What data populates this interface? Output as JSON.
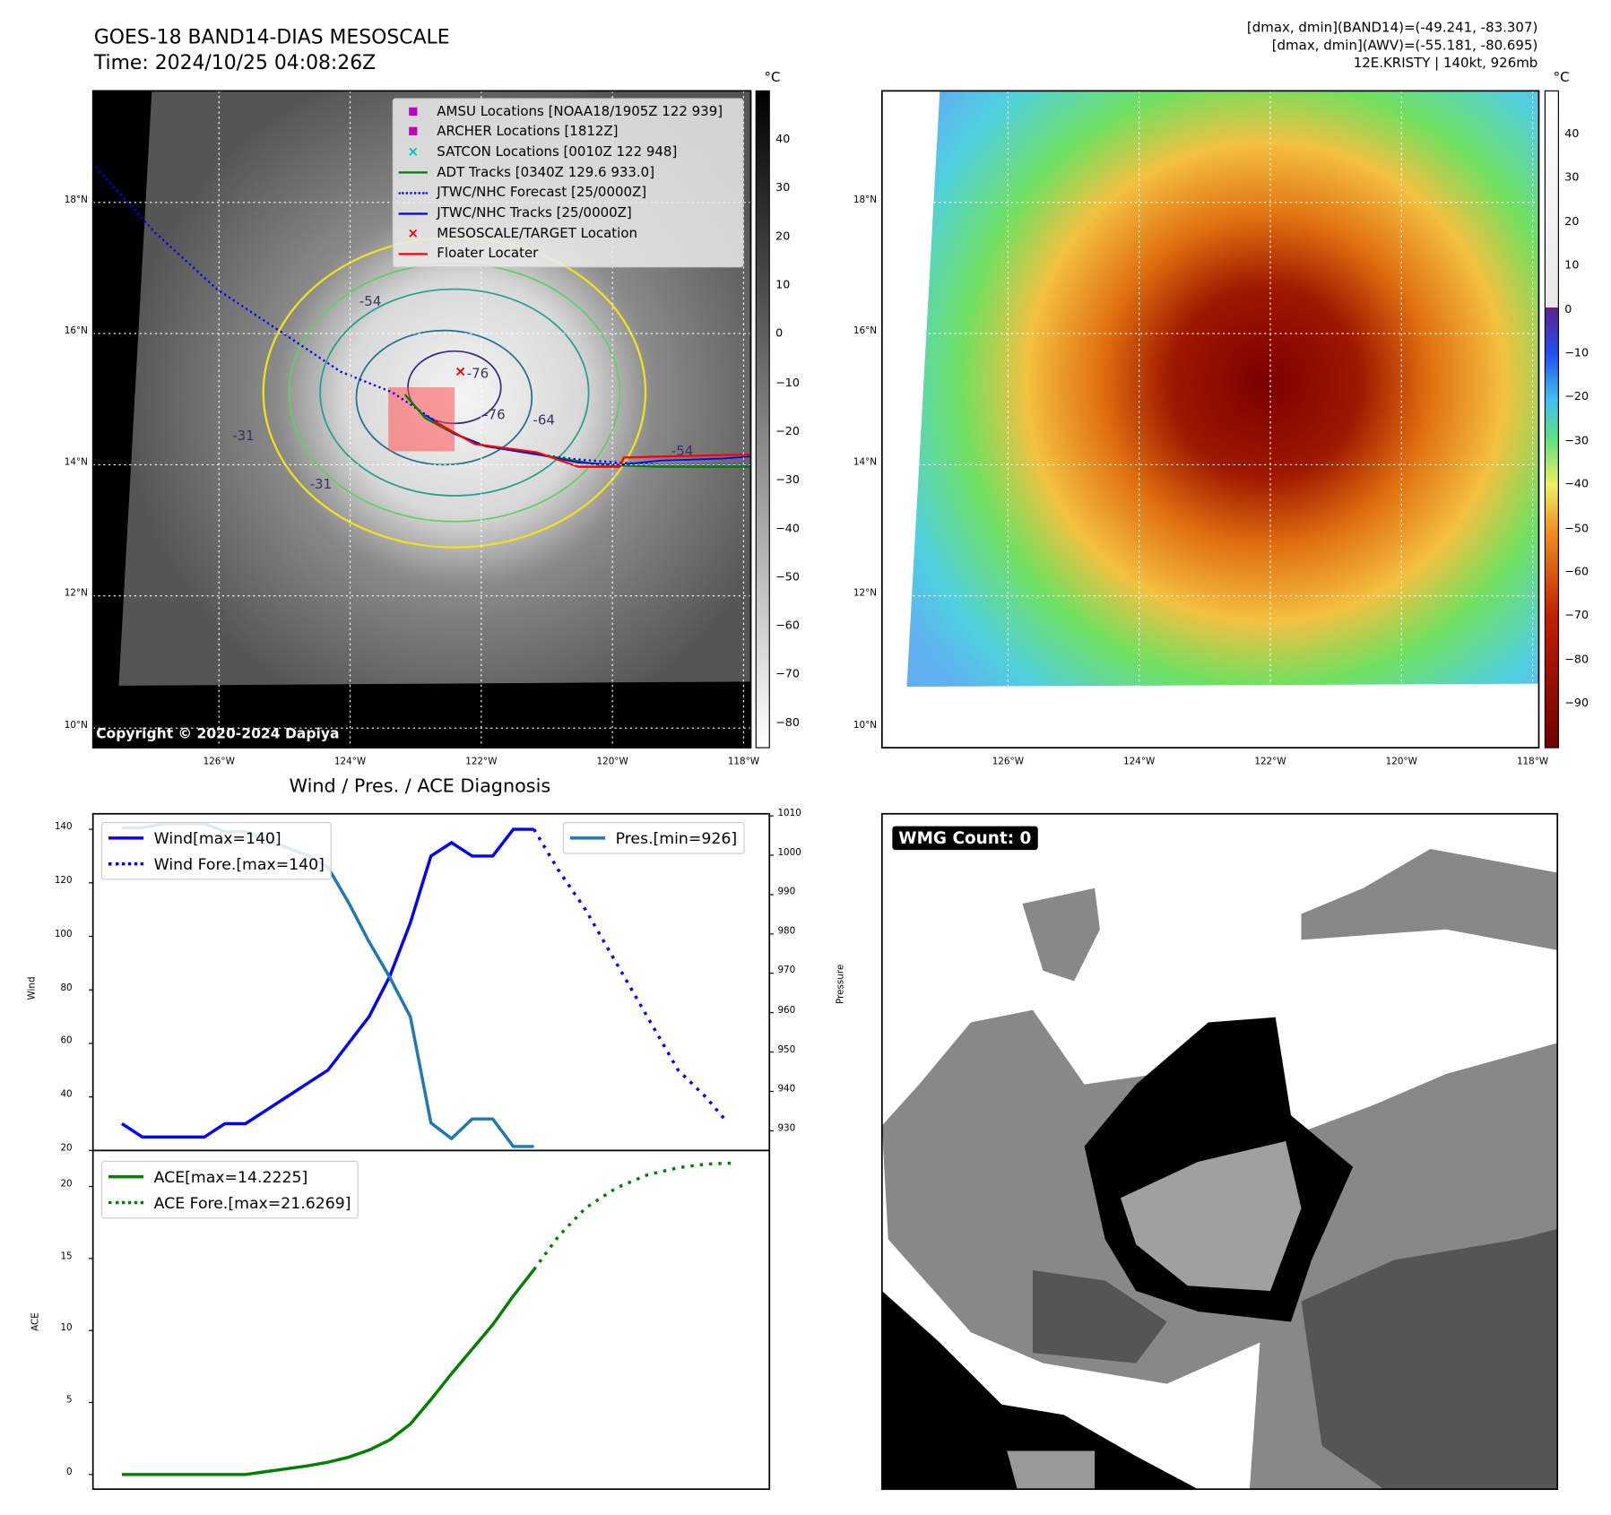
{
  "header": {
    "title": "GOES-18 BAND14-DIAS MESOSCALE",
    "time": "Time: 2024/10/25 04:08:26Z",
    "info": [
      "[dmax, dmin](BAND14)=(-49.241, -83.307)",
      "[dmax, dmin](AWV)=(-55.181, -80.695)",
      "12E.KRISTY | 140kt, 926mb"
    ]
  },
  "maps": {
    "unit": "°C",
    "lat_labels": [
      "18°N",
      "16°N",
      "14°N",
      "12°N",
      "10°N"
    ],
    "lon_labels": [
      "126°W",
      "124°W",
      "122°W",
      "120°W",
      "118°W"
    ],
    "copyright": "Copyright © 2020-2024 Dapiya",
    "gray_colorbar_ticks": [
      "40",
      "30",
      "20",
      "10",
      "0",
      "−10",
      "−20",
      "−30",
      "−40",
      "−50",
      "−60",
      "−70",
      "−80"
    ],
    "color_colorbar_ticks": [
      "40",
      "30",
      "20",
      "10",
      "0",
      "−10",
      "−20",
      "−30",
      "−40",
      "−50",
      "−60",
      "−70",
      "−80",
      "−90"
    ],
    "contour_labels": [
      "-54",
      "-76",
      "-76",
      "-64",
      "-31",
      "-31",
      "-54"
    ],
    "legend": [
      {
        "label": "AMSU Locations [NOAA18/1905Z 122 939]",
        "color": "#c000c0",
        "kind": "square"
      },
      {
        "label": "ARCHER Locations [1812Z]",
        "color": "#c000c0",
        "kind": "square"
      },
      {
        "label": "SATCON Locations [0010Z 122 948]",
        "color": "#00c0c0",
        "kind": "x"
      },
      {
        "label": "ADT Tracks [0340Z 129.6 933.0]",
        "color": "#008000",
        "kind": "line"
      },
      {
        "label": "JTWC/NHC Forecast [25/0000Z]",
        "color": "#0000ff",
        "kind": "dotted"
      },
      {
        "label": "JTWC/NHC Tracks [25/0000Z]",
        "color": "#0000ff",
        "kind": "linedot"
      },
      {
        "label": "MESOSCALE/TARGET Location",
        "color": "#ff0000",
        "kind": "x"
      },
      {
        "label": "Floater Locater",
        "color": "#ff0000",
        "kind": "line"
      }
    ]
  },
  "wmg": {
    "label": "WMG Count: 0"
  },
  "chart_data": [
    {
      "type": "line",
      "title": "Wind / Pres. / ACE Diagnosis",
      "ylabel": "Wind",
      "y2label": "Pressure",
      "ylim": [
        20,
        145
      ],
      "y2lim": [
        925,
        1010
      ],
      "yticks": [
        20,
        40,
        60,
        80,
        100,
        120,
        140
      ],
      "y2ticks": [
        930,
        940,
        950,
        960,
        970,
        980,
        990,
        1000,
        1010
      ],
      "x_hours": [
        0,
        6,
        12,
        18,
        24,
        30,
        36,
        42,
        48,
        54,
        60,
        66,
        72,
        78,
        84,
        90,
        96,
        102,
        108,
        114,
        120
      ],
      "series": [
        {
          "name": "Wind[max=140]",
          "color": "#0000ff",
          "style": "solid",
          "axis": "left",
          "x": [
            0,
            6,
            12,
            18,
            24,
            30,
            36,
            42,
            48,
            54,
            60,
            66,
            72,
            78,
            84,
            90,
            96,
            102,
            108,
            114,
            120
          ],
          "values": [
            30,
            25,
            25,
            25,
            25,
            30,
            30,
            35,
            40,
            45,
            50,
            60,
            70,
            85,
            105,
            130,
            135,
            130,
            130,
            140,
            140
          ]
        },
        {
          "name": "Wind Fore.[max=140]",
          "color": "#0000ff",
          "style": "dotted",
          "axis": "left",
          "x": [
            120,
            127,
            135,
            144,
            153,
            162,
            170,
            176
          ],
          "values": [
            140,
            125,
            110,
            90,
            70,
            50,
            40,
            31
          ]
        },
        {
          "name": "Pres.[min=926]",
          "color": "#1f77b4",
          "style": "solid",
          "axis": "right",
          "x": [
            0,
            6,
            12,
            18,
            24,
            30,
            36,
            42,
            48,
            54,
            60,
            66,
            72,
            78,
            84,
            90,
            96,
            102,
            108,
            114,
            120
          ],
          "values": [
            1007,
            1007,
            1008,
            1008,
            1008,
            1006,
            1006,
            1004,
            1002,
            1000,
            997,
            988,
            978,
            969,
            959,
            932,
            928,
            933,
            933,
            926,
            926
          ]
        }
      ]
    },
    {
      "type": "line",
      "ylabel": "ACE",
      "ylim": [
        -1,
        22.5
      ],
      "yticks": [
        0,
        5,
        10,
        15,
        20
      ],
      "series": [
        {
          "name": "ACE[max=14.2225]",
          "color": "#008000",
          "style": "solid",
          "x": [
            0,
            6,
            12,
            18,
            24,
            30,
            36,
            42,
            48,
            54,
            60,
            66,
            72,
            78,
            84,
            90,
            96,
            102,
            108,
            114,
            120
          ],
          "values": [
            0,
            0,
            0,
            0,
            0,
            0,
            0,
            0.2,
            0.4,
            0.6,
            0.85,
            1.2,
            1.7,
            2.4,
            3.5,
            5.2,
            7,
            8.7,
            10.4,
            12.4,
            14.2225
          ]
        },
        {
          "name": "ACE Fore.[max=21.6269]",
          "color": "#008000",
          "style": "dotted",
          "x": [
            120,
            127,
            135,
            144,
            153,
            162,
            170,
            178
          ],
          "values": [
            14.2225,
            16.5,
            18.5,
            19.9,
            20.8,
            21.3,
            21.55,
            21.6269
          ]
        }
      ]
    }
  ]
}
